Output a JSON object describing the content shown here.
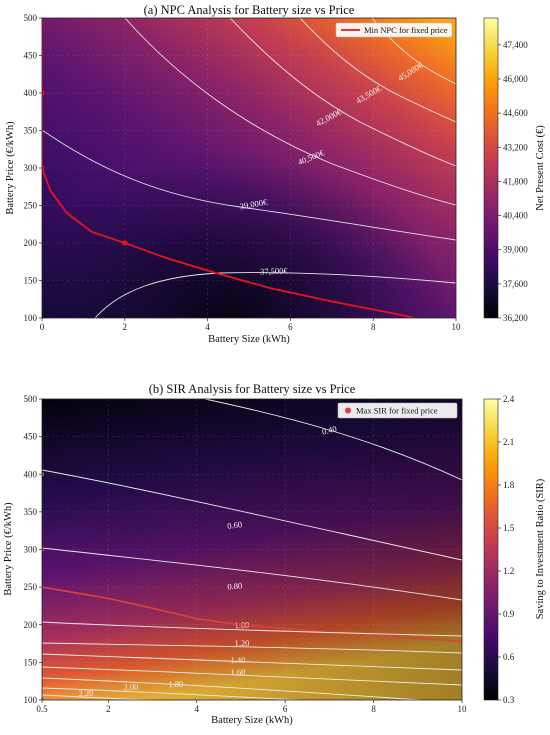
{
  "chart_data": [
    {
      "type": "heatmap",
      "title": "(a) NPC Analysis for Battery size vs Price",
      "xlabel": "Battery Size (kWh)",
      "ylabel": "Battery Price (€/kWh)",
      "xlim": [
        0,
        10
      ],
      "ylim": [
        100,
        500
      ],
      "xticks": [
        "0",
        "2",
        "4",
        "6",
        "8",
        "10"
      ],
      "yticks": [
        "100",
        "150",
        "200",
        "250",
        "300",
        "350",
        "400",
        "450",
        "500"
      ],
      "colorbar": {
        "label": "Net Present Cost (€)",
        "range": [
          36200,
          48500
        ],
        "ticks": [
          "36,200",
          "37,600",
          "39,000",
          "40,400",
          "41,800",
          "43,200",
          "44,600",
          "46,000",
          "47,400"
        ],
        "colormap": "inferno"
      },
      "contour_labels": [
        "37,500€",
        "39,000€",
        "40,500€",
        "42,000€",
        "43,500€",
        "45,000€"
      ],
      "series": [
        {
          "name": "Min NPC for fixed price",
          "color": "#e8141b",
          "x": [
            0,
            0,
            0,
            0,
            0.2,
            0.6,
            1.2,
            2,
            3,
            4.2,
            5.5,
            7,
            8.5,
            9
          ],
          "y": [
            500,
            450,
            400,
            300,
            270,
            240,
            215,
            200,
            180,
            160,
            140,
            122,
            106,
            100
          ]
        }
      ],
      "markers": [
        {
          "x": 0,
          "y": 400
        },
        {
          "x": 0,
          "y": 300
        },
        {
          "x": 2,
          "y": 200
        }
      ],
      "grid": true,
      "legend": "top-right"
    },
    {
      "type": "heatmap",
      "title": "(b) SIR Analysis for Battery size vs Price",
      "xlabel": "Battery Size (kWh)",
      "ylabel": "Battery Price (€/kWh)",
      "xlim": [
        0.5,
        10
      ],
      "ylim": [
        100,
        500
      ],
      "xticks": [
        "0.5",
        "2",
        "4",
        "6",
        "8",
        "10"
      ],
      "yticks": [
        "100",
        "150",
        "200",
        "250",
        "300",
        "350",
        "400",
        "450",
        "500"
      ],
      "colorbar": {
        "label": "Saving to Investment Ratio (SIR)",
        "range": [
          0.3,
          2.4
        ],
        "ticks": [
          "0.3",
          "0.6",
          "0.9",
          "1.2",
          "1.5",
          "1.8",
          "2.1",
          "2.4"
        ],
        "colormap": "inferno"
      },
      "contour_labels": [
        "0.40",
        "0.60",
        "0.80",
        "1.00",
        "1.20",
        "1.40",
        "1.60",
        "1.80",
        "2.00",
        "2.20"
      ],
      "series": [
        {
          "name": "Max SIR for fixed price",
          "color": "#d9433c",
          "x": [
            0.5,
            2,
            3,
            4,
            5,
            6,
            8,
            10
          ],
          "y": [
            250,
            235,
            222,
            208,
            200,
            195,
            186,
            178
          ]
        }
      ],
      "markers": [
        {
          "x": 0.5,
          "y": 400
        },
        {
          "x": 0.5,
          "y": 300
        },
        {
          "x": 0.5,
          "y": 100
        }
      ],
      "grid": true,
      "legend": "top-right"
    }
  ]
}
